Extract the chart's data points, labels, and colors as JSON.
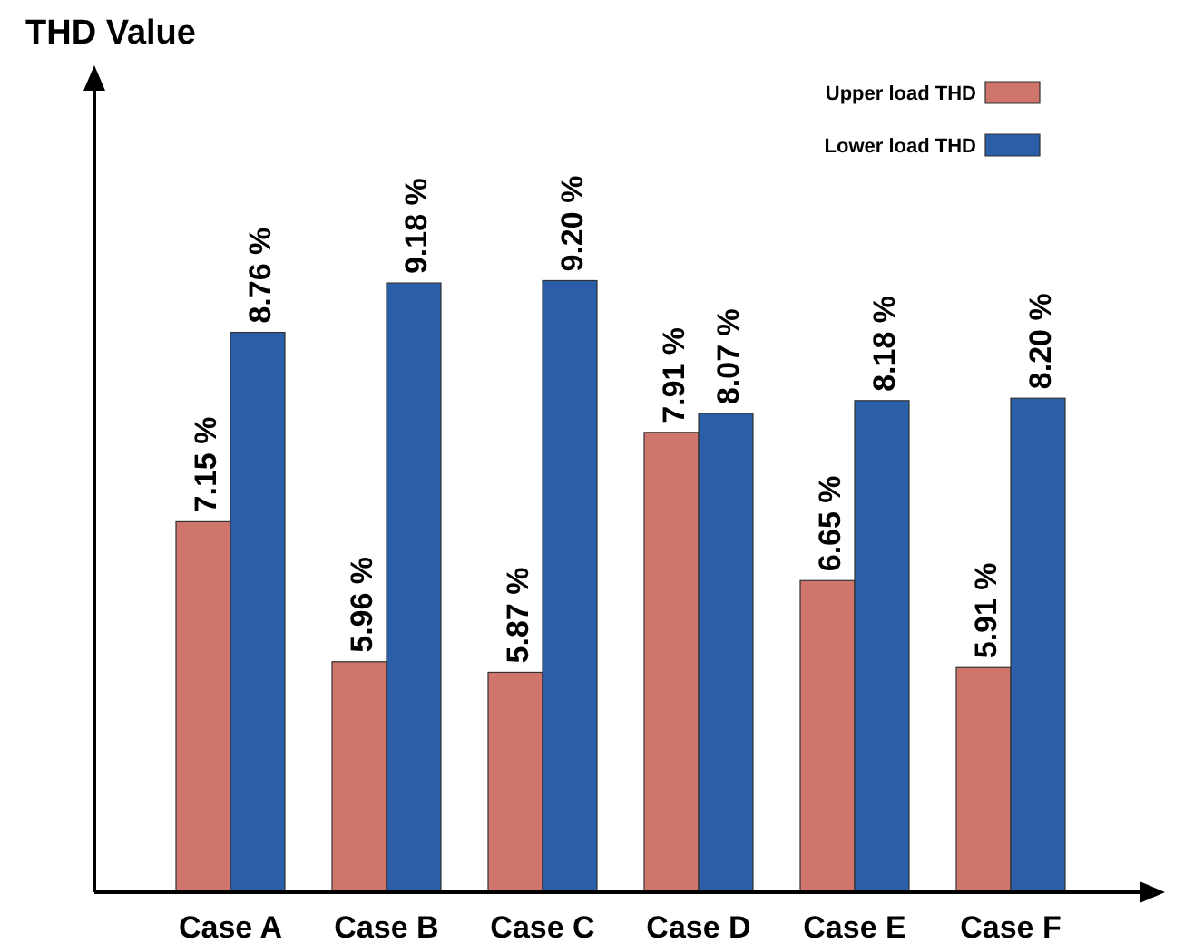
{
  "chart_data": {
    "type": "bar",
    "ylabel": "THD Value",
    "categories": [
      "Case A",
      "Case B",
      "Case C",
      "Case D",
      "Case E",
      "Case F"
    ],
    "series": [
      {
        "name": "Upper load THD",
        "color": "#d0756c",
        "values": [
          7.15,
          5.96,
          5.87,
          7.91,
          6.65,
          5.91
        ],
        "value_labels": [
          "7.15 %",
          "5.96 %",
          "5.87 %",
          "7.91 %",
          "6.65 %",
          "5.91 %"
        ]
      },
      {
        "name": "Lower load THD",
        "color": "#2a5ea8",
        "values": [
          8.76,
          9.18,
          9.2,
          8.07,
          8.18,
          8.2
        ],
        "value_labels": [
          "8.76 %",
          "9.18 %",
          "9.20 %",
          "8.07 %",
          "8.18 %",
          "8.20 %"
        ]
      }
    ],
    "ylim": [
      4,
      11
    ],
    "tick_labels": "x",
    "legend": "top right"
  }
}
